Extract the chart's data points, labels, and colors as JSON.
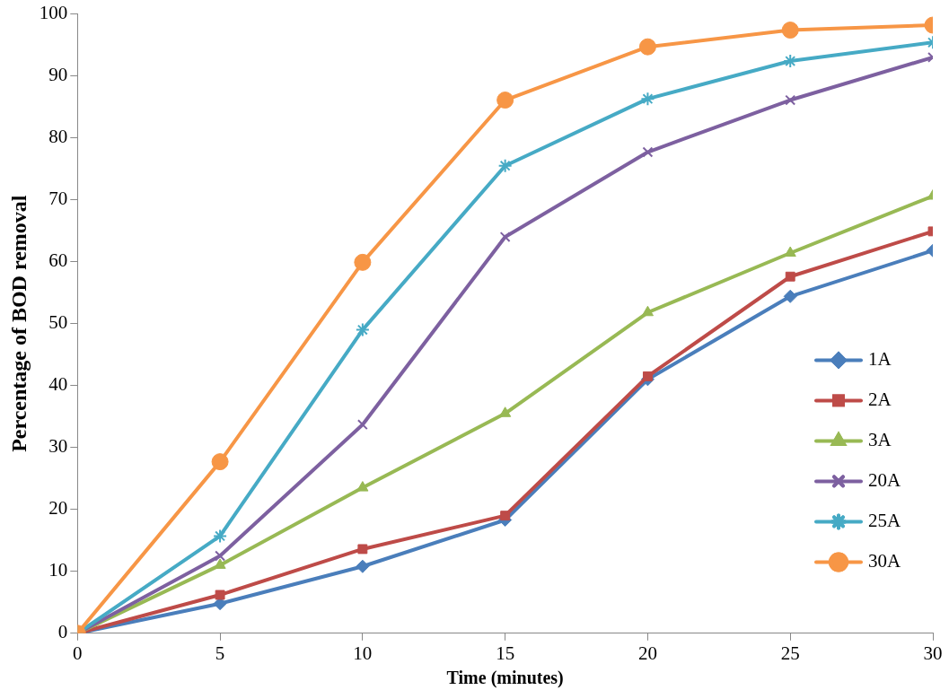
{
  "chart_data": {
    "type": "line",
    "xlabel": "Time (minutes)",
    "ylabel": "Percentage of BOD removal",
    "x": [
      0,
      5,
      10,
      15,
      20,
      25,
      30
    ],
    "xlim": [
      0,
      30
    ],
    "xticks": [
      0,
      5,
      10,
      15,
      20,
      25,
      30
    ],
    "ylim": [
      0,
      100
    ],
    "yticks": [
      0,
      10,
      20,
      30,
      40,
      50,
      60,
      70,
      80,
      90,
      100
    ],
    "grid": false,
    "legend": "right",
    "series": [
      {
        "name": "1A",
        "color": "#4a7ebb",
        "marker": "diamond",
        "values": [
          0,
          4.8,
          10.8,
          18.3,
          41,
          54.4,
          61.8
        ]
      },
      {
        "name": "2A",
        "color": "#be4b48",
        "marker": "square",
        "values": [
          0,
          6.2,
          13.6,
          19,
          41.5,
          57.6,
          64.9
        ]
      },
      {
        "name": "3A",
        "color": "#98b954",
        "marker": "triangle",
        "values": [
          0,
          11,
          23.5,
          35.5,
          51.8,
          61.4,
          70.6
        ]
      },
      {
        "name": "20A",
        "color": "#7d60a0",
        "marker": "cross",
        "values": [
          0,
          12.5,
          33.7,
          64,
          77.7,
          86.1,
          93
        ]
      },
      {
        "name": "25A",
        "color": "#46aac5",
        "marker": "cross",
        "values": [
          0,
          15.7,
          49,
          75.5,
          86.3,
          92.4,
          95.4
        ]
      },
      {
        "name": "30A",
        "color": "#f79646",
        "marker": "circle",
        "values": [
          0,
          27.7,
          59.9,
          86.1,
          94.7,
          97.4,
          98.2
        ]
      }
    ]
  }
}
